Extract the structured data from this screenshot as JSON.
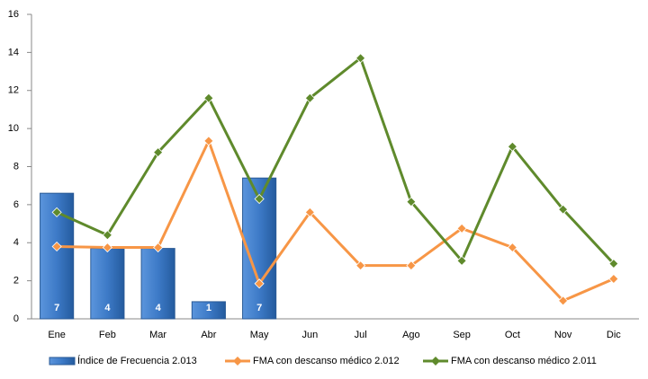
{
  "chart_data": {
    "type": "bar",
    "categories": [
      "Ene",
      "Feb",
      "Mar",
      "Abr",
      "May",
      "Jun",
      "Jul",
      "Ago",
      "Sep",
      "Oct",
      "Nov",
      "Dic"
    ],
    "series": [
      {
        "name": "Índice de Frecuencia 2.013",
        "type": "bar",
        "color": "#3d7ac7",
        "values": [
          6.6,
          3.7,
          3.7,
          0.9,
          7.4,
          null,
          null,
          null,
          null,
          null,
          null,
          null
        ],
        "value_labels": [
          "7",
          "4",
          "4",
          "1",
          "7",
          null,
          null,
          null,
          null,
          null,
          null,
          null
        ]
      },
      {
        "name": "FMA con descanso médico 2.012",
        "type": "line",
        "color": "#f79646",
        "values": [
          3.8,
          3.75,
          3.75,
          9.35,
          1.85,
          5.6,
          2.8,
          2.8,
          4.75,
          3.75,
          0.95,
          2.1
        ]
      },
      {
        "name": "FMA con descanso médico 2.011",
        "type": "line",
        "color": "#5f8a2c",
        "values": [
          5.6,
          4.4,
          8.75,
          11.6,
          6.3,
          11.6,
          13.7,
          6.15,
          3.05,
          9.05,
          5.75,
          2.9
        ]
      }
    ],
    "ylim": [
      0,
      16
    ],
    "yticks": [
      0,
      2,
      4,
      6,
      8,
      10,
      12,
      14,
      16
    ],
    "grid": false,
    "legend": "bottom"
  }
}
